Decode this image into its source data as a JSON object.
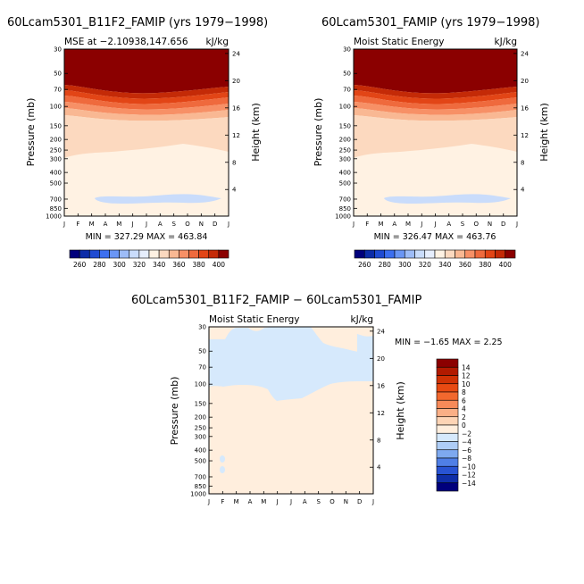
{
  "chart_data": [
    {
      "type": "heatmap",
      "title": "60Lcam5301_B11F2_FAMIP (yrs 1979−1998)",
      "subtitle_left": "MSE at −2.10938,147.656",
      "subtitle_right": "kJ/kg",
      "ylabel": "Pressure (mb)",
      "ylabel_right": "Height (km)",
      "x_ticks": [
        "J",
        "F",
        "M",
        "A",
        "M",
        "J",
        "J",
        "A",
        "S",
        "O",
        "N",
        "D",
        "J"
      ],
      "y_ticks": [
        "30",
        "50",
        "70",
        "100",
        "150",
        "200",
        "250",
        "300",
        "400",
        "500",
        "700",
        "850",
        "1000"
      ],
      "y_ticks_right": [
        "24",
        "20",
        "16",
        "12",
        "8",
        "4"
      ],
      "stats": "MIN = 327.29  MAX = 463.84",
      "colorbar_labels": [
        "260",
        "280",
        "300",
        "320",
        "340",
        "360",
        "380",
        "400"
      ]
    },
    {
      "type": "heatmap",
      "title": "60Lcam5301_FAMIP (yrs 1979−1998)",
      "subtitle_left": "Moist Static Energy",
      "subtitle_right": "kJ/kg",
      "ylabel": "Pressure (mb)",
      "ylabel_right": "Height (km)",
      "x_ticks": [
        "J",
        "F",
        "M",
        "A",
        "M",
        "J",
        "J",
        "A",
        "S",
        "O",
        "N",
        "D",
        "J"
      ],
      "y_ticks": [
        "30",
        "50",
        "70",
        "100",
        "150",
        "200",
        "250",
        "300",
        "400",
        "500",
        "700",
        "850",
        "1000"
      ],
      "y_ticks_right": [
        "24",
        "20",
        "16",
        "12",
        "8",
        "4"
      ],
      "stats": "MIN = 326.47  MAX = 463.76",
      "colorbar_labels": [
        "260",
        "280",
        "300",
        "320",
        "340",
        "360",
        "380",
        "400"
      ]
    },
    {
      "type": "heatmap",
      "title": "60Lcam5301_B11F2_FAMIP − 60Lcam5301_FAMIP",
      "subtitle_left": "Moist Static Energy",
      "subtitle_right": "kJ/kg",
      "ylabel": "Pressure (mb)",
      "ylabel_right": "Height (km)",
      "x_ticks": [
        "J",
        "F",
        "M",
        "A",
        "M",
        "J",
        "J",
        "A",
        "S",
        "O",
        "N",
        "D",
        "J"
      ],
      "y_ticks": [
        "30",
        "50",
        "70",
        "100",
        "150",
        "200",
        "250",
        "300",
        "400",
        "500",
        "700",
        "850",
        "1000"
      ],
      "y_ticks_right": [
        "24",
        "20",
        "16",
        "12",
        "8",
        "4"
      ],
      "stats": "MIN =  −1.65  MAX =   2.25",
      "colorbar_labels": [
        "14",
        "12",
        "10",
        "8",
        "6",
        "4",
        "2",
        "0",
        "−2",
        "−4",
        "−6",
        "−8",
        "−10",
        "−12",
        "−14"
      ]
    }
  ],
  "colors": {
    "abs_scale": [
      "#00007c",
      "#0c2ca8",
      "#1f4bd2",
      "#3c6ff0",
      "#6a96f5",
      "#9dbcf8",
      "#c9dcfb",
      "#e6eefd",
      "#fff2e3",
      "#fcd9bf",
      "#f9b893",
      "#f79066",
      "#ef6a3d",
      "#e24516",
      "#c42a07",
      "#8b0000"
    ],
    "diff_scale": [
      "#8b0000",
      "#b21a00",
      "#d03205",
      "#e84a12",
      "#f2682e",
      "#f78a59",
      "#faaf86",
      "#fdd4b5",
      "#ffeedd",
      "#d6e9fc",
      "#aecdf6",
      "#7ea9ef",
      "#4f7fe6",
      "#2853d3",
      "#0f2ea8",
      "#00007c"
    ]
  }
}
